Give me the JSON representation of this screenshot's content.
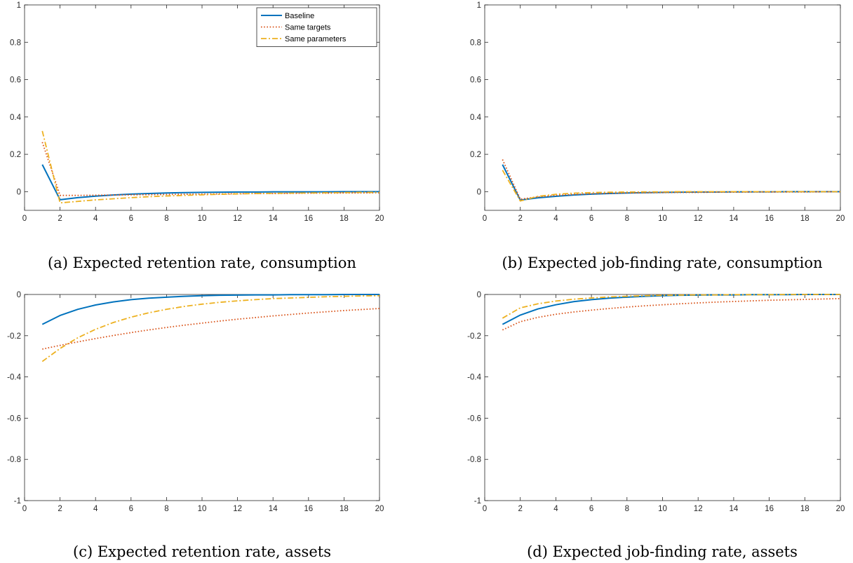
{
  "colors": {
    "baseline": "#0072BD",
    "same_targets": "#D95319",
    "same_parameters": "#EDB120",
    "axis": "#262626"
  },
  "legend": {
    "placement": "top-right",
    "entries": [
      "Baseline",
      "Same targets",
      "Same parameters"
    ]
  },
  "chart_data": [
    {
      "type": "line",
      "caption": "(a) Expected retention rate, consumption",
      "xlim": [
        0,
        20
      ],
      "ylim": [
        -0.1,
        1
      ],
      "xticks": [
        0,
        2,
        4,
        6,
        8,
        10,
        12,
        14,
        16,
        18,
        20
      ],
      "yticks": [
        0,
        0.2,
        0.4,
        0.6,
        0.8,
        1
      ],
      "legend": true,
      "grid": false,
      "x": [
        1,
        2,
        3,
        4,
        5,
        6,
        7,
        8,
        9,
        10,
        11,
        12,
        13,
        14,
        15,
        16,
        17,
        18,
        19,
        20
      ],
      "series": [
        {
          "name": "Baseline",
          "style": "solid",
          "values": [
            0.145,
            -0.043,
            -0.032,
            -0.024,
            -0.018,
            -0.013,
            -0.01,
            -0.007,
            -0.005,
            -0.004,
            -0.003,
            -0.002,
            -0.002,
            -0.001,
            -0.001,
            -0.001,
            -0.001,
            0,
            0,
            0
          ]
        },
        {
          "name": "Same targets",
          "style": "dotted",
          "values": [
            0.265,
            -0.02,
            -0.02,
            -0.019,
            -0.018,
            -0.017,
            -0.016,
            -0.015,
            -0.014,
            -0.013,
            -0.012,
            -0.011,
            -0.01,
            -0.01,
            -0.009,
            -0.008,
            -0.008,
            -0.007,
            -0.007,
            -0.006
          ]
        },
        {
          "name": "Same parameters",
          "style": "dashdot",
          "values": [
            0.325,
            -0.06,
            -0.052,
            -0.044,
            -0.038,
            -0.032,
            -0.027,
            -0.023,
            -0.02,
            -0.017,
            -0.014,
            -0.012,
            -0.01,
            -0.009,
            -0.008,
            -0.007,
            -0.006,
            -0.005,
            -0.004,
            -0.004
          ]
        }
      ]
    },
    {
      "type": "line",
      "caption": "(b) Expected job-finding rate, consumption",
      "xlim": [
        0,
        20
      ],
      "ylim": [
        -0.1,
        1
      ],
      "xticks": [
        0,
        2,
        4,
        6,
        8,
        10,
        12,
        14,
        16,
        18,
        20
      ],
      "yticks": [
        0,
        0.2,
        0.4,
        0.6,
        0.8,
        1
      ],
      "legend": false,
      "grid": false,
      "x": [
        1,
        2,
        3,
        4,
        5,
        6,
        7,
        8,
        9,
        10,
        11,
        12,
        13,
        14,
        15,
        16,
        17,
        18,
        19,
        20
      ],
      "series": [
        {
          "name": "Baseline",
          "style": "solid",
          "values": [
            0.145,
            -0.045,
            -0.033,
            -0.025,
            -0.018,
            -0.013,
            -0.01,
            -0.007,
            -0.005,
            -0.004,
            -0.003,
            -0.002,
            -0.002,
            -0.001,
            -0.001,
            -0.001,
            0,
            0,
            0,
            0
          ]
        },
        {
          "name": "Same targets",
          "style": "dotted",
          "values": [
            0.172,
            -0.04,
            -0.028,
            -0.02,
            -0.015,
            -0.011,
            -0.009,
            -0.007,
            -0.006,
            -0.005,
            -0.004,
            -0.004,
            -0.003,
            -0.003,
            -0.002,
            -0.002,
            -0.002,
            -0.002,
            -0.001,
            -0.001
          ]
        },
        {
          "name": "Same parameters",
          "style": "dashdot",
          "values": [
            0.115,
            -0.05,
            -0.025,
            -0.014,
            -0.008,
            -0.005,
            -0.003,
            -0.002,
            -0.001,
            -0.001,
            0,
            0,
            0,
            0,
            0,
            0,
            0,
            0,
            0,
            0
          ]
        }
      ]
    },
    {
      "type": "line",
      "caption": "(c) Expected retention rate, assets",
      "xlim": [
        0,
        20
      ],
      "ylim": [
        -1,
        0
      ],
      "xticks": [
        0,
        2,
        4,
        6,
        8,
        10,
        12,
        14,
        16,
        18,
        20
      ],
      "yticks": [
        -1,
        -0.8,
        -0.6,
        -0.4,
        -0.2,
        0
      ],
      "legend": false,
      "grid": false,
      "x": [
        1,
        2,
        3,
        4,
        5,
        6,
        7,
        8,
        9,
        10,
        11,
        12,
        13,
        14,
        15,
        16,
        17,
        18,
        19,
        20
      ],
      "series": [
        {
          "name": "Baseline",
          "style": "solid",
          "values": [
            -0.145,
            -0.102,
            -0.072,
            -0.051,
            -0.036,
            -0.025,
            -0.018,
            -0.013,
            -0.009,
            -0.006,
            -0.004,
            -0.003,
            -0.002,
            -0.002,
            -0.001,
            -0.001,
            -0.001,
            0,
            0,
            0
          ]
        },
        {
          "name": "Same targets",
          "style": "dotted",
          "values": [
            -0.265,
            -0.247,
            -0.23,
            -0.214,
            -0.199,
            -0.185,
            -0.172,
            -0.16,
            -0.149,
            -0.139,
            -0.129,
            -0.12,
            -0.112,
            -0.104,
            -0.097,
            -0.09,
            -0.084,
            -0.078,
            -0.073,
            -0.068
          ]
        },
        {
          "name": "Same parameters",
          "style": "dashdot",
          "values": [
            -0.325,
            -0.262,
            -0.21,
            -0.169,
            -0.136,
            -0.11,
            -0.089,
            -0.072,
            -0.058,
            -0.047,
            -0.038,
            -0.031,
            -0.025,
            -0.02,
            -0.017,
            -0.014,
            -0.011,
            -0.009,
            -0.007,
            -0.006
          ]
        }
      ]
    },
    {
      "type": "line",
      "caption": "(d) Expected job-finding rate, assets",
      "xlim": [
        0,
        20
      ],
      "ylim": [
        -1,
        0
      ],
      "xticks": [
        0,
        2,
        4,
        6,
        8,
        10,
        12,
        14,
        16,
        18,
        20
      ],
      "yticks": [
        -1,
        -0.8,
        -0.6,
        -0.4,
        -0.2,
        0
      ],
      "legend": false,
      "grid": false,
      "x": [
        1,
        2,
        3,
        4,
        5,
        6,
        7,
        8,
        9,
        10,
        11,
        12,
        13,
        14,
        15,
        16,
        17,
        18,
        19,
        20
      ],
      "series": [
        {
          "name": "Baseline",
          "style": "solid",
          "values": [
            -0.145,
            -0.1,
            -0.07,
            -0.05,
            -0.035,
            -0.025,
            -0.018,
            -0.013,
            -0.009,
            -0.006,
            -0.004,
            -0.003,
            -0.002,
            -0.002,
            -0.001,
            -0.001,
            -0.001,
            0,
            0,
            0
          ]
        },
        {
          "name": "Same targets",
          "style": "dotted",
          "values": [
            -0.172,
            -0.132,
            -0.111,
            -0.096,
            -0.085,
            -0.076,
            -0.068,
            -0.061,
            -0.055,
            -0.05,
            -0.045,
            -0.041,
            -0.037,
            -0.034,
            -0.031,
            -0.028,
            -0.026,
            -0.024,
            -0.022,
            -0.02
          ]
        },
        {
          "name": "Same parameters",
          "style": "dashdot",
          "values": [
            -0.115,
            -0.065,
            -0.045,
            -0.032,
            -0.023,
            -0.017,
            -0.012,
            -0.009,
            -0.006,
            -0.004,
            -0.003,
            -0.002,
            -0.002,
            -0.001,
            -0.001,
            -0.001,
            0,
            0,
            0,
            0
          ]
        }
      ]
    }
  ]
}
